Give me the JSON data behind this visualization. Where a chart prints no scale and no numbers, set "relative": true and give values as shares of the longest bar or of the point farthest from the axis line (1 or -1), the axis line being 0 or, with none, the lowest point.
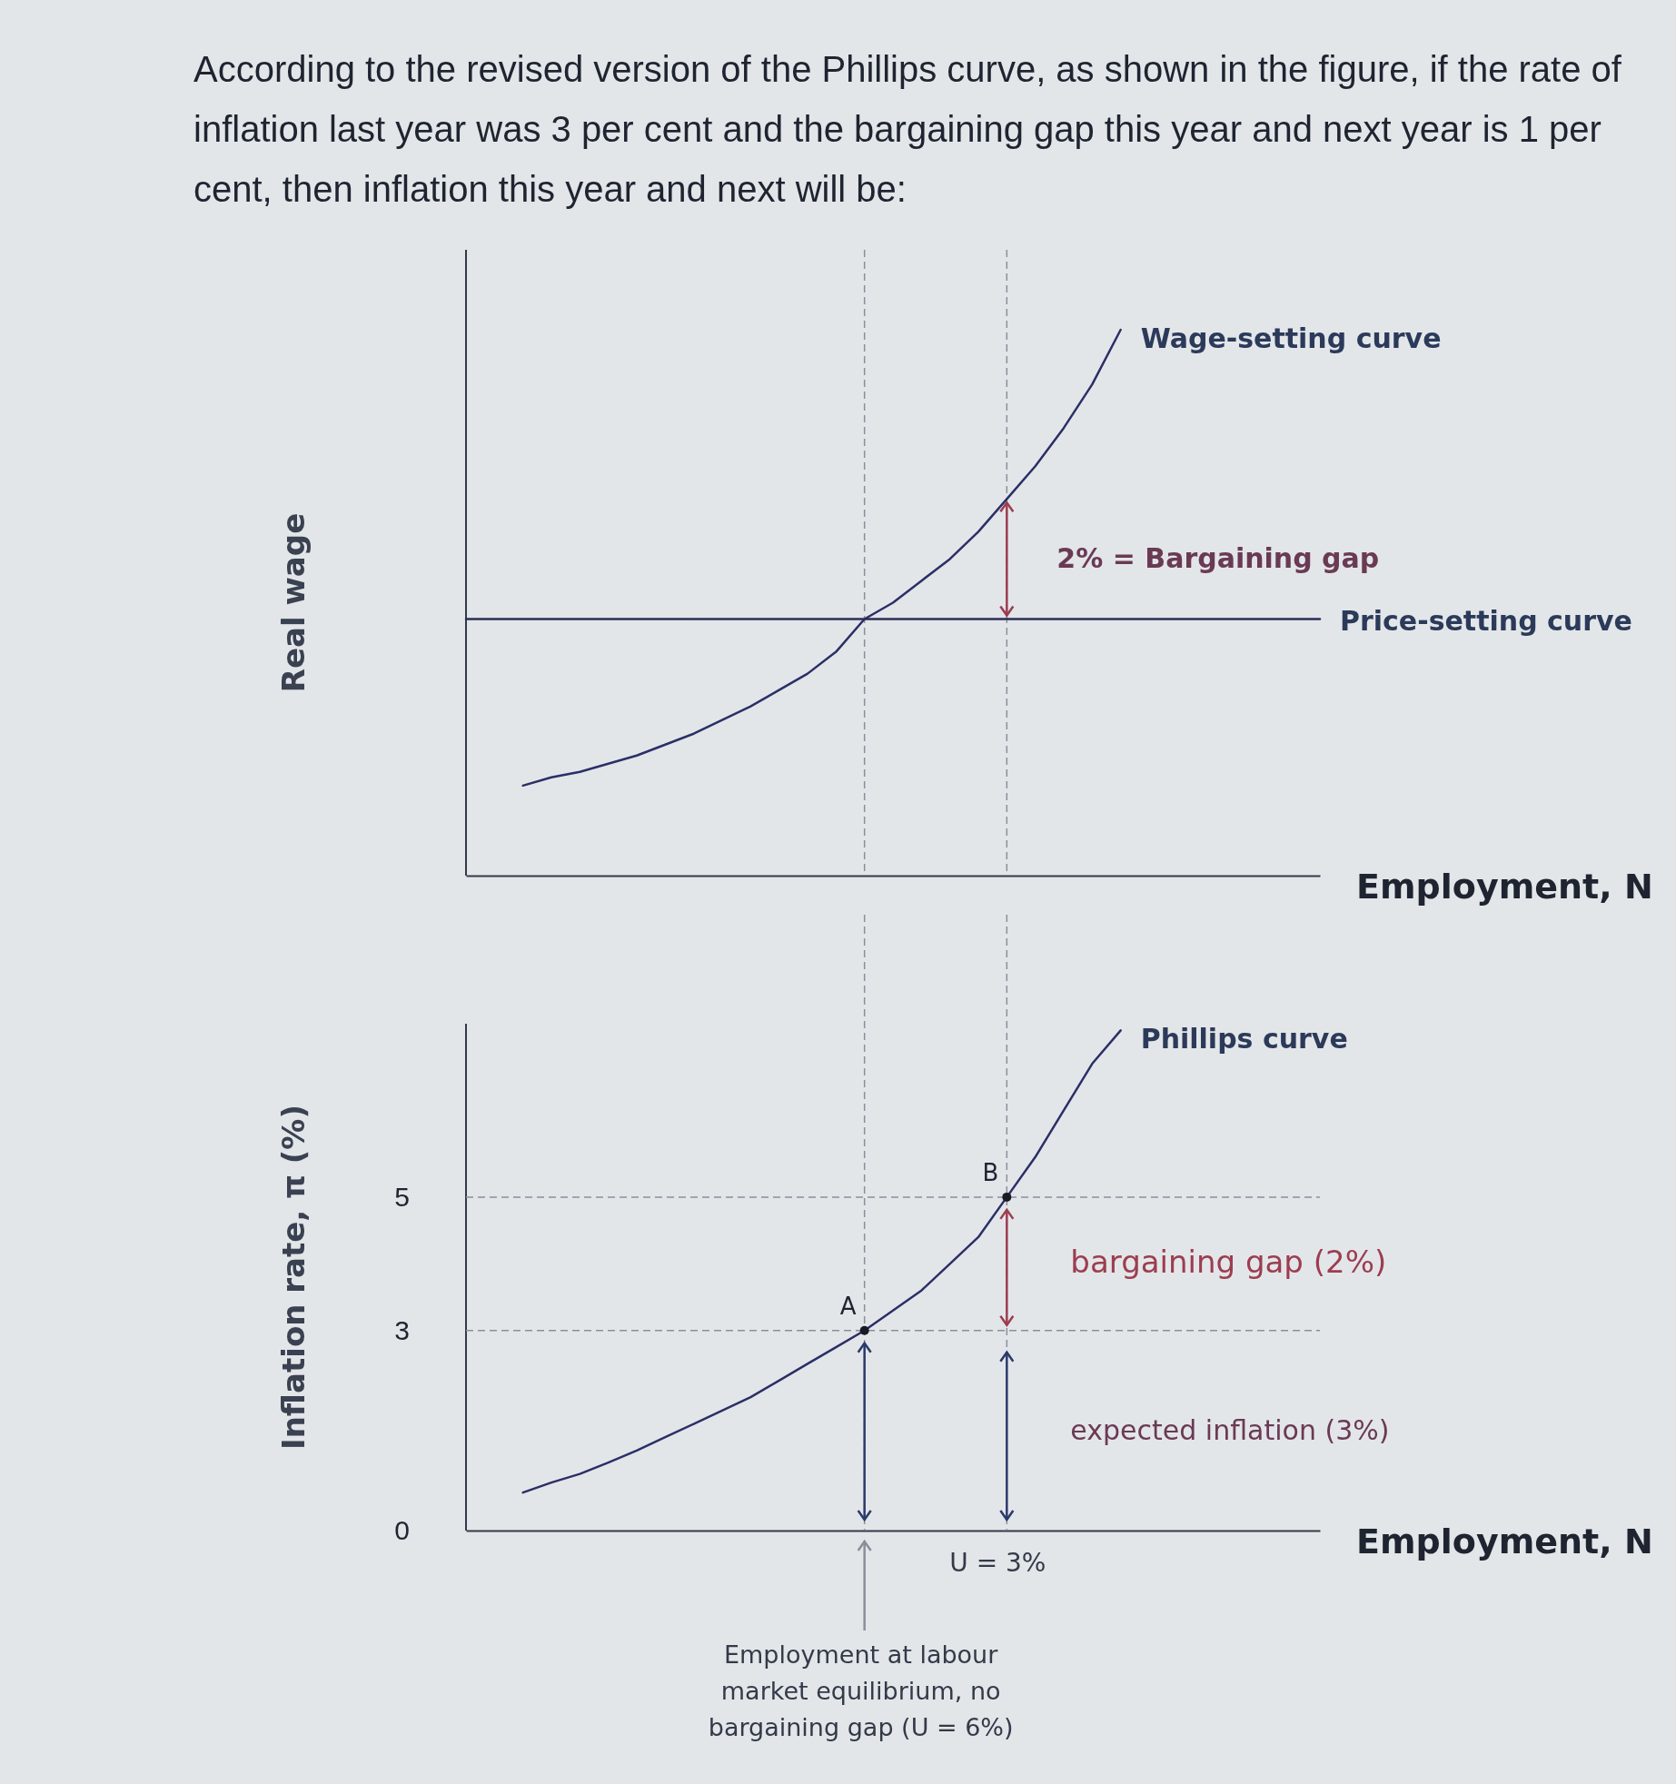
{
  "chart_data": [
    {
      "type": "line",
      "title": "According to the revised version of the Phillips curve, as shown in the figure, if the rate of inflation last year was 3 per cent and the bargaining gap this year and next year is 1 per cent, then inflation this year and next will be:",
      "xlabel": "Employment, N",
      "ylabel": "Real wage",
      "relative": true,
      "tick_labels": false,
      "grid": false,
      "legend": false,
      "marker": "none",
      "line_style": "solid",
      "categories": [
        null,
        null,
        null,
        null,
        null,
        null,
        null,
        null,
        null,
        null,
        null,
        null,
        null,
        null,
        null,
        null,
        null,
        null,
        null,
        null,
        null,
        null,
        null,
        null,
        null,
        null,
        null,
        null,
        null,
        null,
        null
      ],
      "series": [
        {
          "name": "Wage-setting curve",
          "color": "#2b2f66",
          "values": [
            null,
            null,
            0.165,
            0.18,
            0.19,
            0.205,
            0.22,
            0.24,
            0.26,
            0.285,
            0.31,
            0.34,
            0.37,
            0.41,
            0.47,
            0.5,
            0.54,
            0.58,
            0.63,
            0.69,
            0.75,
            0.82,
            0.9,
            1,
            null,
            null,
            null,
            null,
            null,
            null,
            null
          ]
        },
        {
          "name": "Price-setting curve",
          "color": "#2a2f55",
          "values": [
            0.47,
            0.47,
            0.47,
            0.47,
            0.47,
            0.47,
            0.47,
            0.47,
            0.47,
            0.47,
            0.47,
            0.47,
            0.47,
            0.47,
            0.47,
            0.47,
            0.47,
            0.47,
            0.47,
            0.47,
            0.47,
            0.47,
            0.47,
            0.47,
            0.47,
            0.47,
            0.47,
            0.47,
            0.47,
            0.47,
            0.47
          ]
        }
      ],
      "annotations": [
        "2% = Bargaining gap"
      ]
    },
    {
      "type": "line",
      "xlabel": "Employment, N",
      "ylabel": "Inflation rate, π (%)",
      "ylim": [
        0,
        7.6
      ],
      "yticks": [
        0,
        3,
        5
      ],
      "tick_labels": "y",
      "grid": false,
      "legend": false,
      "marker": "none",
      "line_style": "solid",
      "categories": [
        null,
        null,
        null,
        null,
        null,
        null,
        null,
        null,
        null,
        null,
        null,
        null,
        null,
        null,
        null,
        null,
        null,
        null,
        null,
        null,
        null,
        null,
        null,
        null,
        null,
        null,
        null,
        null,
        null,
        null,
        null
      ],
      "series": [
        {
          "name": "Phillips curve",
          "color": "#2b2f66",
          "values": [
            null,
            null,
            0.57,
            0.72,
            0.85,
            1.02,
            1.2,
            1.4,
            1.6,
            1.8,
            2,
            2.25,
            2.5,
            2.75,
            3,
            3.3,
            3.6,
            4,
            4.4,
            5,
            5.6,
            6.3,
            7,
            7.5,
            null,
            null,
            null,
            null,
            null,
            null,
            null
          ],
          "value_labels": [
            null,
            null,
            null,
            null,
            null,
            null,
            null,
            null,
            null,
            null,
            null,
            null,
            null,
            null,
            "A",
            null,
            null,
            null,
            null,
            "B",
            null,
            null,
            null,
            null,
            null,
            null,
            null,
            null,
            null,
            null,
            null
          ]
        }
      ],
      "ref_lines": [
        {
          "axis": "y",
          "value": 5,
          "color": "#8a8f9a",
          "line_style": "dashed"
        },
        {
          "axis": "y",
          "value": 3,
          "color": "#8a8f9a",
          "line_style": "dashed"
        }
      ],
      "annotations": [
        "bargaining gap (2%)",
        "expected inflation (3%)",
        "U = 3%",
        "Employment at labour market equilibrium, no bargaining gap (U = 6%)"
      ]
    }
  ]
}
